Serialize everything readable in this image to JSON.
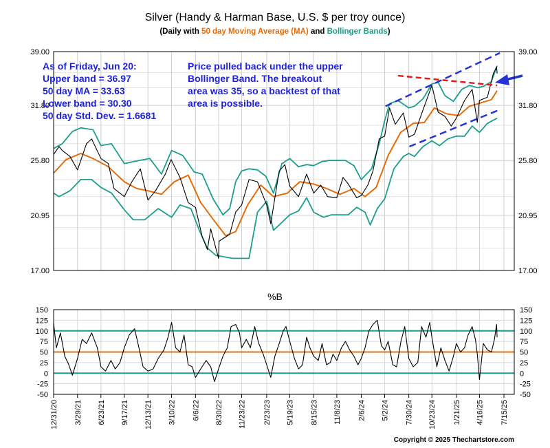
{
  "chart_data": [
    {
      "type": "line",
      "title": "Silver (Handy & Harman Base, U.S. $ per troy ounce)",
      "subtitle": {
        "prefix": "(Daily with ",
        "ma_text": "50 day Moving Average (MA)",
        "and": " and ",
        "bb_text": "Bollinger Bands",
        "suffix": ")"
      },
      "colors": {
        "price": "#000000",
        "ma": "#e46c0a",
        "bands": "#1b9e8e",
        "annotation": "#1f22d6",
        "channel": "#2433d6",
        "resistance": "#e01b1b",
        "background": "#ffffff",
        "grid": "#cfcfcf"
      },
      "ylim": [
        17.0,
        39.0
      ],
      "y_ticks": [
        "39.00",
        "31.80",
        "25.80",
        "20.95",
        "17.00"
      ],
      "y_tick_values": [
        39.0,
        31.8,
        25.8,
        20.95,
        17.0
      ],
      "y_scale": "log",
      "x_range": [
        "2020-12-31",
        "2025-06-20"
      ],
      "grid": true,
      "annotations": {
        "stats": [
          "As of Friday, Jun 20:",
          "Upper band = 36.97",
          "50 day MA = 33.63",
          "Lower band = 30.30",
          "50 day Std. Dev. = 1.6681"
        ],
        "comment": [
          "Price pulled back under the upper",
          "Bollinger Band.  The breakout",
          "area was 35, so a backtest of that",
          "area is possible."
        ]
      },
      "series": [
        {
          "key": "price",
          "x": [
            "2020-12-31",
            "2021-01-20",
            "2021-02-01",
            "2021-03-01",
            "2021-03-29",
            "2021-05-01",
            "2021-05-20",
            "2021-06-23",
            "2021-07-20",
            "2021-08-10",
            "2021-09-17",
            "2021-10-15",
            "2021-11-15",
            "2021-12-13",
            "2022-01-10",
            "2022-02-15",
            "2022-03-08",
            "2022-04-10",
            "2022-05-10",
            "2022-06-06",
            "2022-07-01",
            "2022-07-20",
            "2022-08-01",
            "2022-08-30",
            "2022-09-01",
            "2022-10-10",
            "2022-11-01",
            "2022-11-23",
            "2022-12-20",
            "2023-01-20",
            "2023-02-23",
            "2023-03-10",
            "2023-04-10",
            "2023-05-01",
            "2023-05-19",
            "2023-06-20",
            "2023-07-20",
            "2023-08-15",
            "2023-09-10",
            "2023-10-05",
            "2023-11-08",
            "2023-12-01",
            "2023-12-20",
            "2024-01-20",
            "2024-02-06",
            "2024-03-01",
            "2024-03-20",
            "2024-04-12",
            "2024-05-02",
            "2024-05-20",
            "2024-06-10",
            "2024-07-10",
            "2024-07-30",
            "2024-08-20",
            "2024-09-15",
            "2024-10-23",
            "2024-11-15",
            "2024-12-10",
            "2025-01-02",
            "2025-01-21",
            "2025-02-20",
            "2025-03-20",
            "2025-04-08",
            "2025-04-16",
            "2025-05-15",
            "2025-06-06",
            "2025-06-18",
            "2025-06-20"
          ],
          "values": [
            26.4,
            27.2,
            26.8,
            26.2,
            24.9,
            27.5,
            28.0,
            26.0,
            25.5,
            23.2,
            22.5,
            23.8,
            25.0,
            22.2,
            23.0,
            24.5,
            25.9,
            24.2,
            22.0,
            21.6,
            19.3,
            18.4,
            19.9,
            17.8,
            19.0,
            19.5,
            21.2,
            21.8,
            24.0,
            23.8,
            21.8,
            20.3,
            24.8,
            25.4,
            23.4,
            22.5,
            24.5,
            22.8,
            23.5,
            22.5,
            22.4,
            24.2,
            23.6,
            22.4,
            22.6,
            23.5,
            24.8,
            28.0,
            28.3,
            31.5,
            29.6,
            30.9,
            28.2,
            28.5,
            30.8,
            34.3,
            31.0,
            30.5,
            29.4,
            30.3,
            32.4,
            33.8,
            29.8,
            32.4,
            32.8,
            35.9,
            36.8,
            35.9
          ]
        },
        {
          "key": "ma",
          "x": [
            "2020-12-31",
            "2021-02-15",
            "2021-04-10",
            "2021-05-25",
            "2021-07-20",
            "2021-09-17",
            "2021-11-01",
            "2021-12-13",
            "2022-02-01",
            "2022-03-20",
            "2022-05-10",
            "2022-06-25",
            "2022-08-15",
            "2022-09-25",
            "2022-11-01",
            "2022-12-15",
            "2023-02-01",
            "2023-03-20",
            "2023-05-10",
            "2023-06-25",
            "2023-08-15",
            "2023-10-01",
            "2023-11-20",
            "2024-01-10",
            "2024-02-20",
            "2024-04-01",
            "2024-05-15",
            "2024-06-30",
            "2024-08-15",
            "2024-09-25",
            "2024-11-01",
            "2024-12-15",
            "2025-01-30",
            "2025-03-10",
            "2025-04-20",
            "2025-05-30",
            "2025-06-20"
          ],
          "values": [
            24.6,
            25.9,
            26.5,
            26.0,
            25.2,
            23.8,
            23.2,
            23.0,
            22.7,
            23.8,
            24.4,
            22.0,
            20.5,
            19.4,
            19.7,
            21.8,
            23.5,
            22.5,
            22.8,
            23.8,
            23.6,
            23.2,
            22.7,
            23.2,
            22.5,
            23.3,
            26.3,
            28.7,
            29.7,
            29.8,
            31.5,
            30.8,
            30.6,
            31.7,
            32.1,
            32.5,
            33.63
          ]
        },
        {
          "key": "upper",
          "x": [
            "2020-12-31",
            "2021-02-01",
            "2021-03-10",
            "2021-04-10",
            "2021-05-25",
            "2021-06-23",
            "2021-08-01",
            "2021-09-17",
            "2021-11-10",
            "2021-12-20",
            "2022-02-01",
            "2022-03-10",
            "2022-04-20",
            "2022-06-01",
            "2022-07-01",
            "2022-08-10",
            "2022-09-15",
            "2022-10-10",
            "2022-11-01",
            "2022-11-23",
            "2022-12-20",
            "2023-01-20",
            "2023-02-20",
            "2023-03-20",
            "2023-04-20",
            "2023-05-19",
            "2023-06-20",
            "2023-07-20",
            "2023-08-15",
            "2023-09-15",
            "2023-10-10",
            "2023-11-10",
            "2023-12-10",
            "2024-01-10",
            "2024-02-06",
            "2024-03-15",
            "2024-04-12",
            "2024-05-02",
            "2024-05-20",
            "2024-06-20",
            "2024-07-30",
            "2024-08-20",
            "2024-09-20",
            "2024-10-23",
            "2024-11-15",
            "2024-12-10",
            "2025-01-10",
            "2025-02-10",
            "2025-03-10",
            "2025-04-10",
            "2025-05-01",
            "2025-05-30",
            "2025-06-20"
          ],
          "values": [
            27.0,
            27.5,
            28.8,
            29.2,
            29.0,
            27.3,
            27.5,
            25.5,
            25.8,
            26.0,
            24.5,
            26.8,
            26.3,
            24.7,
            24.5,
            22.3,
            21.0,
            21.5,
            23.8,
            24.8,
            25.0,
            24.9,
            24.3,
            22.8,
            25.5,
            26.0,
            25.2,
            25.4,
            25.3,
            25.7,
            25.8,
            25.8,
            25.8,
            25.3,
            24.0,
            25.0,
            27.5,
            30.0,
            32.0,
            32.4,
            31.5,
            31.7,
            32.6,
            34.5,
            34.7,
            33.0,
            32.3,
            33.8,
            34.3,
            34.0,
            34.2,
            34.8,
            36.97
          ]
        },
        {
          "key": "lower",
          "x": [
            "2020-12-31",
            "2021-01-20",
            "2021-03-01",
            "2021-04-10",
            "2021-05-20",
            "2021-06-23",
            "2021-08-01",
            "2021-09-17",
            "2021-10-20",
            "2021-12-01",
            "2022-01-20",
            "2022-03-10",
            "2022-04-10",
            "2022-05-20",
            "2022-06-20",
            "2022-07-20",
            "2022-08-20",
            "2022-09-20",
            "2022-10-20",
            "2022-11-23",
            "2022-12-20",
            "2023-01-20",
            "2023-02-23",
            "2023-03-20",
            "2023-04-20",
            "2023-05-19",
            "2023-06-20",
            "2023-07-20",
            "2023-08-15",
            "2023-09-20",
            "2023-10-20",
            "2023-11-20",
            "2023-12-20",
            "2024-01-20",
            "2024-02-20",
            "2024-03-10",
            "2024-04-05",
            "2024-05-02",
            "2024-06-05",
            "2024-07-10",
            "2024-07-30",
            "2024-08-20",
            "2024-09-20",
            "2024-10-23",
            "2024-11-20",
            "2024-12-20",
            "2025-01-21",
            "2025-02-20",
            "2025-03-20",
            "2025-04-16",
            "2025-05-15",
            "2025-06-20"
          ],
          "values": [
            22.8,
            22.5,
            23.0,
            24.0,
            24.0,
            23.3,
            22.8,
            21.4,
            20.6,
            20.6,
            21.5,
            20.8,
            21.8,
            21.5,
            19.8,
            18.5,
            18.0,
            17.9,
            17.8,
            17.8,
            17.8,
            21.2,
            22.1,
            19.8,
            20.4,
            21.0,
            21.3,
            22.4,
            21.2,
            20.8,
            21.0,
            21.0,
            21.0,
            21.6,
            21.2,
            20.2,
            21.5,
            22.3,
            25.0,
            26.2,
            26.5,
            26.2,
            27.2,
            27.8,
            27.3,
            28.0,
            28.3,
            28.3,
            29.4,
            28.7,
            29.7,
            30.3
          ]
        }
      ]
    },
    {
      "type": "line",
      "title": "%B",
      "ylim": [
        -50,
        150
      ],
      "y_ticks": [
        "150",
        "125",
        "100",
        "75",
        "50",
        "25",
        "0",
        "-25",
        "-50"
      ],
      "y_tick_values": [
        150,
        125,
        100,
        75,
        50,
        25,
        0,
        -25,
        -50
      ],
      "reference_lines": [
        100,
        50,
        0
      ],
      "x_tick_labels": [
        "12/31/20",
        "3/29/21",
        "6/23/21",
        "9/17/21",
        "12/13/21",
        "3/10/22",
        "6/6/22",
        "8/30/22",
        "11/23/22",
        "2/23/23",
        "5/19/23",
        "8/15/23",
        "11/8/23",
        "2/6/24",
        "5/2/24",
        "7/30/24",
        "10/23/24",
        "1/21/25",
        "4/16/25",
        "7/15/25"
      ],
      "x_tick_dates": [
        "2020-12-31",
        "2021-03-29",
        "2021-06-23",
        "2021-09-17",
        "2021-12-13",
        "2022-03-10",
        "2022-06-06",
        "2022-08-30",
        "2022-11-23",
        "2023-02-23",
        "2023-05-19",
        "2023-08-15",
        "2023-11-08",
        "2024-02-06",
        "2024-05-02",
        "2024-07-30",
        "2024-10-23",
        "2025-01-21",
        "2025-04-16",
        "2025-07-15"
      ],
      "series": [
        {
          "key": "pctb",
          "x": [
            "2020-12-31",
            "2021-01-10",
            "2021-01-25",
            "2021-02-10",
            "2021-02-25",
            "2021-03-10",
            "2021-03-29",
            "2021-04-15",
            "2021-05-01",
            "2021-05-20",
            "2021-06-10",
            "2021-06-23",
            "2021-07-10",
            "2021-07-30",
            "2021-08-15",
            "2021-09-01",
            "2021-09-17",
            "2021-10-05",
            "2021-10-25",
            "2021-11-10",
            "2021-11-25",
            "2021-12-13",
            "2022-01-01",
            "2022-01-20",
            "2022-02-10",
            "2022-02-25",
            "2022-03-10",
            "2022-03-25",
            "2022-04-10",
            "2022-04-25",
            "2022-05-10",
            "2022-05-25",
            "2022-06-06",
            "2022-06-25",
            "2022-07-15",
            "2022-08-01",
            "2022-08-15",
            "2022-08-30",
            "2022-09-15",
            "2022-10-01",
            "2022-10-15",
            "2022-11-01",
            "2022-11-15",
            "2022-11-23",
            "2022-12-10",
            "2022-12-25",
            "2023-01-10",
            "2023-01-25",
            "2023-02-10",
            "2023-02-23",
            "2023-03-10",
            "2023-03-25",
            "2023-04-10",
            "2023-04-25",
            "2023-05-05",
            "2023-05-19",
            "2023-06-05",
            "2023-06-20",
            "2023-07-05",
            "2023-07-20",
            "2023-08-01",
            "2023-08-15",
            "2023-09-01",
            "2023-09-15",
            "2023-10-01",
            "2023-10-15",
            "2023-10-25",
            "2023-11-08",
            "2023-11-25",
            "2023-12-10",
            "2023-12-25",
            "2024-01-10",
            "2024-01-25",
            "2024-02-06",
            "2024-02-20",
            "2024-03-05",
            "2024-03-20",
            "2024-04-05",
            "2024-04-20",
            "2024-05-02",
            "2024-05-15",
            "2024-06-01",
            "2024-06-15",
            "2024-07-01",
            "2024-07-15",
            "2024-07-30",
            "2024-08-15",
            "2024-09-01",
            "2024-09-15",
            "2024-10-01",
            "2024-10-15",
            "2024-10-23",
            "2024-11-10",
            "2024-11-25",
            "2024-12-10",
            "2024-12-25",
            "2025-01-10",
            "2025-01-21",
            "2025-02-05",
            "2025-02-20",
            "2025-03-05",
            "2025-03-20",
            "2025-04-01",
            "2025-04-08",
            "2025-04-16",
            "2025-04-30",
            "2025-05-15",
            "2025-05-30",
            "2025-06-10",
            "2025-06-18",
            "2025-06-20"
          ],
          "values": [
            118,
            60,
            95,
            40,
            20,
            -5,
            35,
            80,
            70,
            95,
            60,
            15,
            5,
            30,
            10,
            25,
            60,
            90,
            105,
            60,
            15,
            5,
            10,
            35,
            55,
            85,
            120,
            60,
            50,
            90,
            20,
            15,
            -10,
            10,
            30,
            15,
            -20,
            10,
            40,
            60,
            110,
            115,
            95,
            60,
            80,
            60,
            110,
            70,
            45,
            20,
            -10,
            40,
            70,
            100,
            110,
            75,
            35,
            10,
            20,
            85,
            60,
            40,
            30,
            70,
            20,
            25,
            45,
            30,
            60,
            75,
            55,
            40,
            20,
            35,
            60,
            100,
            115,
            125,
            65,
            55,
            75,
            20,
            15,
            75,
            110,
            35,
            15,
            25,
            110,
            85,
            120,
            85,
            15,
            60,
            30,
            5,
            40,
            70,
            50,
            60,
            90,
            110,
            80,
            45,
            -15,
            70,
            55,
            50,
            80,
            115,
            85
          ]
        }
      ]
    }
  ],
  "copyright": "Copyright © 2025 Thechartstore.com"
}
